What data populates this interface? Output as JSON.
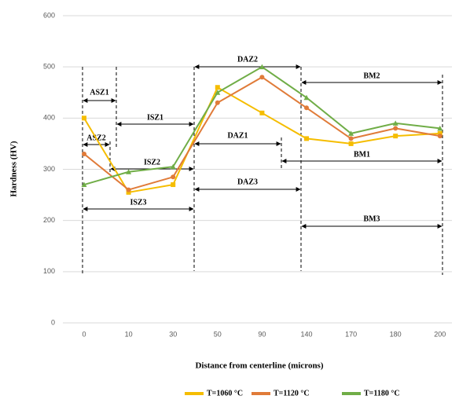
{
  "chart_data": {
    "type": "line",
    "y_label": "Hardness (HV)",
    "x_label": "Distance from centerline (microns)",
    "categories": [
      "0",
      "10",
      "30",
      "50",
      "90",
      "140",
      "170",
      "180",
      "200"
    ],
    "series": [
      {
        "name": "T=1060 °C",
        "color": "#f5bd00",
        "marker": "square",
        "values": [
          400,
          255,
          270,
          460,
          410,
          360,
          350,
          365,
          370
        ]
      },
      {
        "name": "T=1120 °C",
        "color": "#e07b39",
        "marker": "circle",
        "values": [
          330,
          260,
          285,
          430,
          480,
          420,
          360,
          380,
          365
        ]
      },
      {
        "name": "T=1180 °C",
        "color": "#70ad47",
        "marker": "triangle",
        "values": [
          270,
          295,
          305,
          450,
          500,
          440,
          370,
          390,
          380
        ]
      }
    ],
    "ylim": [
      0,
      600
    ],
    "yticks": [
      0,
      100,
      200,
      300,
      400,
      500,
      600
    ],
    "grid": true,
    "annotations": [
      "ASZ1",
      "ASZ2",
      "ISZ1",
      "ISZ2",
      "ISZ3",
      "DAZ2",
      "DAZ1",
      "DAZ3",
      "BM2",
      "BM1",
      "BM3"
    ]
  }
}
